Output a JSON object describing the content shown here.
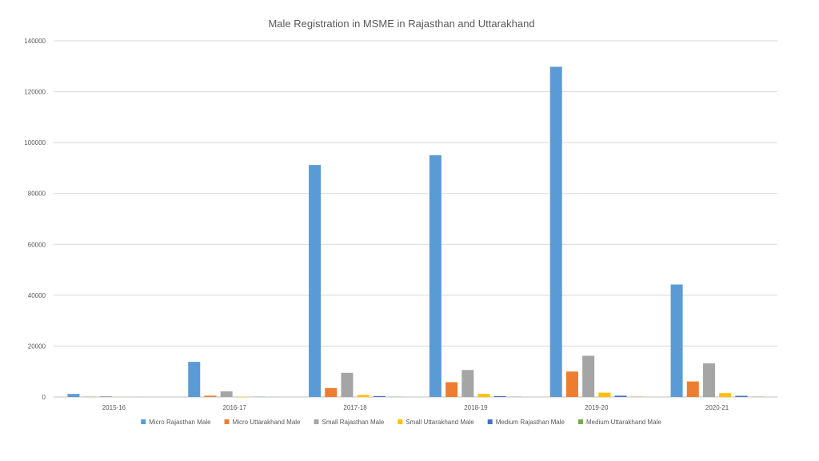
{
  "chart_data": {
    "type": "bar",
    "title": "Male Registration in MSME in Rajasthan and Uttarakhand",
    "xlabel": "",
    "ylabel": "",
    "ylim": [
      0,
      140000
    ],
    "yticks": [
      "0",
      "20000",
      "40000",
      "60000",
      "80000",
      "100000",
      "120000",
      "140000"
    ],
    "grid": true,
    "legend_position": "bottom",
    "categories": [
      "2015-16",
      "2016-17",
      "2017-18",
      "2018-19",
      "2019-20",
      "2020-21"
    ],
    "series": [
      {
        "name": "Micro Rajasthan Male",
        "color": "#5b9bd5",
        "values": [
          1200,
          13800,
          91200,
          95000,
          129800,
          44200
        ]
      },
      {
        "name": "Micro Uttarakhand Male",
        "color": "#ed7d31",
        "values": [
          80,
          500,
          3500,
          5800,
          10000,
          6100
        ]
      },
      {
        "name": "Small Rajasthan Male",
        "color": "#a5a5a5",
        "values": [
          300,
          2200,
          9500,
          10600,
          16200,
          13200
        ]
      },
      {
        "name": "Small Uttarakhand Male",
        "color": "#ffc000",
        "values": [
          20,
          150,
          800,
          1200,
          1700,
          1500
        ]
      },
      {
        "name": "Medium Rajasthan Male",
        "color": "#4472c4",
        "values": [
          10,
          50,
          300,
          350,
          500,
          450
        ]
      },
      {
        "name": "Medium Uttarakhand Male",
        "color": "#70ad47",
        "values": [
          5,
          20,
          60,
          80,
          100,
          90
        ]
      }
    ]
  }
}
